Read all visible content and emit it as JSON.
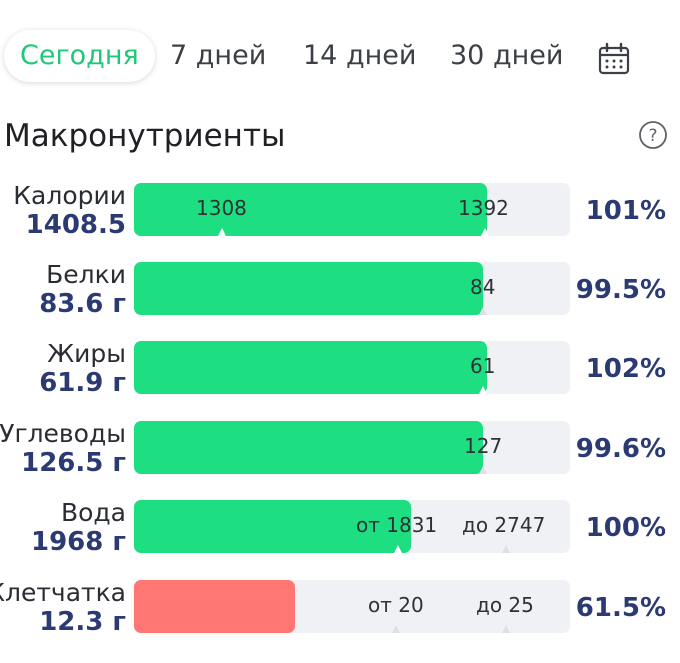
{
  "tabs": [
    {
      "label": "Сегодня",
      "active": true
    },
    {
      "label": "7 дней",
      "active": false
    },
    {
      "label": "14 дней",
      "active": false
    },
    {
      "label": "30 дней",
      "active": false
    }
  ],
  "section_title": "Макронутриенты",
  "accent_color": "#22c87a",
  "fill_color": "#1ede82",
  "low_fill_color": "#ff7673",
  "value_color": "#2b3a73",
  "nutrients": [
    {
      "name": "Калории",
      "value": "1408.5",
      "percent": "101%",
      "fill_fraction": 0.81,
      "markers": [
        "1308",
        "1392"
      ]
    },
    {
      "name": "Белки",
      "value": "83.6 г",
      "percent": "99.5%",
      "fill_fraction": 0.8,
      "markers": [
        "84"
      ]
    },
    {
      "name": "Жиры",
      "value": "61.9 г",
      "percent": "102%",
      "fill_fraction": 0.81,
      "markers": [
        "61"
      ]
    },
    {
      "name": "Углеводы",
      "value": "126.5 г",
      "percent": "99.6%",
      "fill_fraction": 0.8,
      "markers": [
        "127"
      ]
    },
    {
      "name": "Вода",
      "value": "1968 г",
      "percent": "100%",
      "fill_fraction": 0.635,
      "markers": [
        "от 1831",
        "до 2747"
      ]
    },
    {
      "name": "Клетчатка",
      "value": "12.3 г",
      "percent": "61.5%",
      "fill_fraction": 0.37,
      "low": true,
      "markers": [
        "от 20",
        "до 25"
      ]
    }
  ]
}
